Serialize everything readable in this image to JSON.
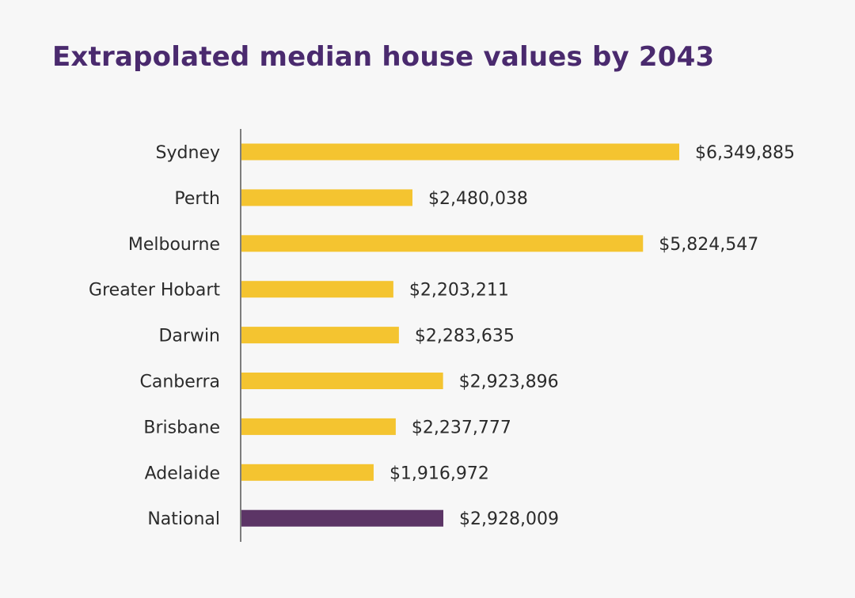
{
  "chart_data": {
    "type": "bar",
    "orientation": "horizontal",
    "title": "Extrapolated median house values by 2043",
    "categories": [
      "Sydney",
      "Perth",
      "Melbourne",
      "Greater Hobart",
      "Darwin",
      "Canberra",
      "Brisbane",
      "Adelaide",
      "National"
    ],
    "values": [
      6349885,
      2480038,
      5824547,
      2203211,
      2283635,
      2923896,
      2237777,
      1916972,
      2928009
    ],
    "value_labels": [
      "$6,349,885",
      "$2,480,038",
      "$5,824,547",
      "$2,203,211",
      "$2,283,635",
      "$2,923,896",
      "$2,237,777",
      "$1,916,972",
      "$2,928,009"
    ],
    "xlabel": "",
    "ylabel": "",
    "grid": false,
    "legend": "none",
    "colors": {
      "bar": "#f4c430",
      "highlight_bar": "#5c3566",
      "title": "#4a2a6e",
      "axis": "#555555",
      "text": "#2b2b2b"
    },
    "highlight_categories": [
      "National"
    ]
  }
}
